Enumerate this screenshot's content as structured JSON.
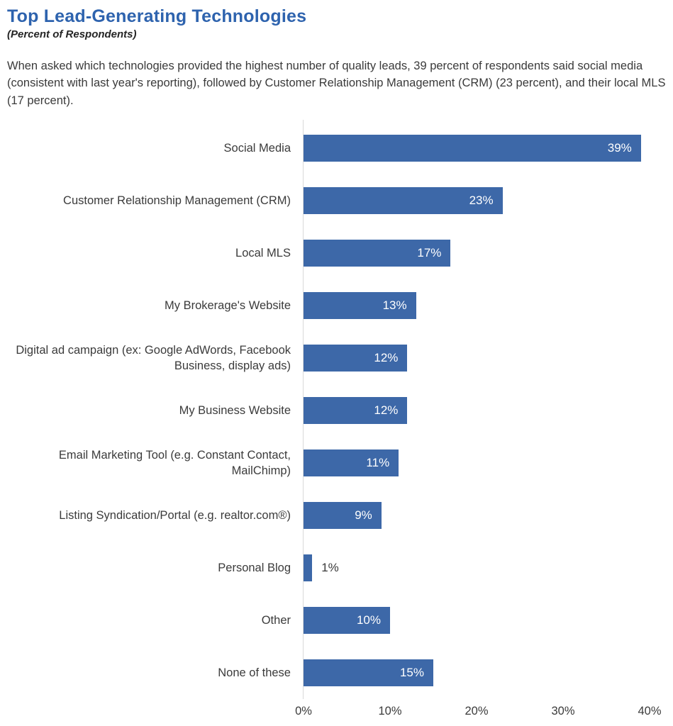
{
  "header": {
    "title": "Top Lead-Generating Technologies",
    "subtitle": "(Percent of Respondents)",
    "description": "When asked which technologies provided the highest number of quality leads, 39 percent of respondents said social media (consistent with last year's reporting), followed by  Customer Relationship Management (CRM) (23 percent), and their local MLS (17 percent)."
  },
  "colors": {
    "title_blue": "#2e63ae",
    "bar_blue": "#3d68a8",
    "bar_value_text": "#ffffff",
    "body_text": "#3a3a3a",
    "axis_line": "#d9d9d9"
  },
  "chart_data": {
    "type": "bar",
    "orientation": "horizontal",
    "title": "Top Lead-Generating Technologies",
    "subtitle": "(Percent of Respondents)",
    "xlabel": "",
    "ylabel": "",
    "xlim": [
      0,
      40
    ],
    "grid": false,
    "legend": false,
    "categories": [
      "Social Media",
      "Customer Relationship Management (CRM)",
      "Local MLS",
      "My Brokerage's Website",
      "Digital ad campaign (ex: Google AdWords, Facebook Business, display ads)",
      "My Business Website",
      "Email Marketing Tool (e.g. Constant Contact, MailChimp)",
      "Listing Syndication/Portal (e.g. realtor.com®)",
      "Personal Blog",
      "Other",
      "None of these"
    ],
    "values": [
      39,
      23,
      17,
      13,
      12,
      12,
      11,
      9,
      1,
      10,
      15
    ],
    "value_labels": [
      "39%",
      "23%",
      "17%",
      "13%",
      "12%",
      "12%",
      "11%",
      "9%",
      "1%",
      "10%",
      "15%"
    ],
    "x_ticks": [
      "0%",
      "10%",
      "20%",
      "30%",
      "40%"
    ],
    "value_label_inside": true,
    "outside_label_threshold": 4
  }
}
